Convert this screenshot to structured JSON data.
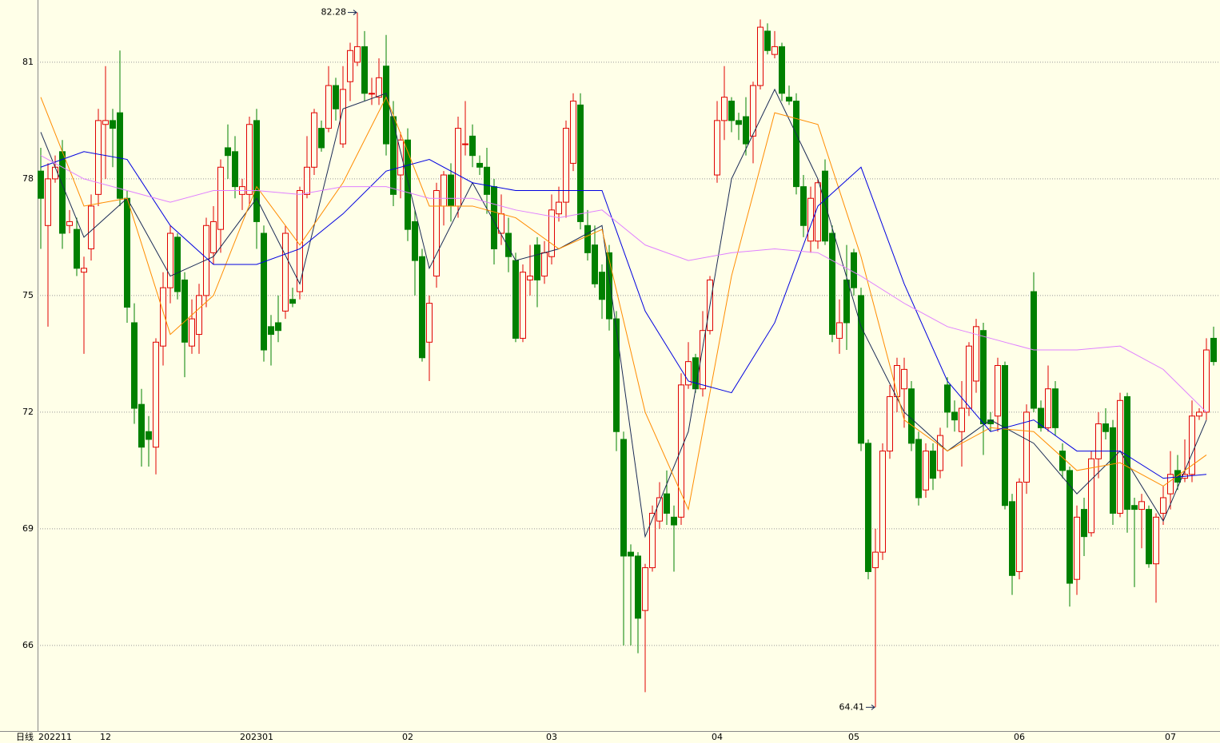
{
  "chart_data": {
    "type": "candlestick",
    "period_label": "日线",
    "categories": [
      "202211",
      null,
      null,
      null,
      null,
      null,
      null,
      null,
      null,
      "12",
      null,
      null,
      null,
      null,
      null,
      null,
      null,
      null,
      null,
      null,
      null,
      null,
      null,
      null,
      null,
      null,
      null,
      null,
      null,
      null,
      "202301",
      null,
      null,
      null,
      null,
      null,
      null,
      null,
      null,
      null,
      null,
      null,
      null,
      null,
      null,
      null,
      null,
      null,
      null,
      null,
      null,
      "02",
      null,
      null,
      null,
      null,
      null,
      null,
      null,
      null,
      null,
      null,
      null,
      null,
      null,
      null,
      null,
      null,
      null,
      null,
      null,
      "03",
      null,
      null,
      null,
      null,
      null,
      null,
      null,
      null,
      null,
      null,
      null,
      null,
      null,
      null,
      null,
      null,
      null,
      null,
      null,
      null,
      null,
      null,
      "04",
      null,
      null,
      null,
      null,
      null,
      null,
      null,
      null,
      null,
      null,
      null,
      null,
      null,
      null,
      null,
      null,
      null,
      null,
      "05",
      null,
      null,
      null,
      null,
      null,
      null,
      null,
      null,
      null,
      null,
      null,
      null,
      null,
      null,
      null,
      null,
      null,
      null,
      null,
      null,
      null,
      null,
      "06",
      null,
      null,
      null,
      null,
      null,
      null,
      null,
      null,
      null,
      null,
      null,
      null,
      null,
      null,
      null,
      null,
      null,
      null,
      null,
      null,
      "07",
      null,
      null,
      null,
      null,
      null,
      null
    ],
    "open": [
      78.2,
      76.8,
      78.0,
      78.7,
      76.8,
      76.7,
      75.6,
      76.2,
      77.6,
      79.4,
      79.5,
      79.7,
      77.5,
      74.3,
      72.2,
      71.5,
      71.1,
      73.7,
      75.2,
      76.5,
      75.4,
      73.7,
      74.0,
      75.0,
      76.1,
      76.7,
      78.8,
      78.7,
      77.6,
      77.6,
      79.5,
      76.6,
      74.2,
      74.3,
      74.6,
      74.9,
      75.1,
      77.6,
      78.3,
      79.3,
      79.3,
      80.4,
      78.9,
      80.5,
      81.0,
      81.4,
      80.2,
      80.1,
      80.9,
      79.6,
      78.1,
      79.0,
      76.9,
      76.0,
      73.8,
      75.5,
      77.3,
      78.1,
      77.3,
      78.9,
      79.1,
      78.4,
      78.3,
      77.8,
      76.6,
      76.6,
      75.9,
      73.9,
      75.4,
      76.3,
      75.5,
      76.0,
      77.1,
      77.4,
      78.4,
      79.9,
      76.8,
      76.3,
      75.6,
      76.1,
      74.4,
      71.3,
      68.4,
      68.3,
      66.9,
      68.0,
      69.2,
      69.9,
      69.3,
      69.3,
      72.7,
      73.4,
      72.6,
      74.1,
      78.1,
      79.5,
      80.0,
      79.5,
      79.6,
      79.1,
      80.4,
      81.8,
      81.2,
      81.4,
      80.1,
      80.0,
      77.8,
      76.4,
      76.4,
      78.2,
      76.6,
      73.9,
      75.4,
      76.1,
      75.0,
      71.2,
      68.0,
      68.4,
      71.0,
      72.4,
      72.6,
      72.6,
      71.3,
      70.0,
      71.0,
      70.5,
      72.7,
      72.0,
      71.5,
      72.1,
      72.8,
      74.1,
      71.8,
      71.9,
      73.2,
      69.7,
      67.9,
      70.2,
      75.1,
      72.1,
      71.6,
      72.6,
      71.0,
      70.5,
      67.7,
      69.5,
      68.9,
      70.8,
      71.7,
      71.6,
      69.4,
      72.4,
      69.6,
      69.5,
      69.5,
      68.1,
      69.4,
      69.9,
      70.5,
      70.3,
      70.4,
      71.9,
      72.0,
      73.9
    ],
    "high": [
      78.8,
      78.4,
      78.6,
      79.0,
      77.2,
      77.0,
      76.0,
      77.6,
      79.8,
      80.9,
      79.8,
      81.3,
      77.7,
      74.8,
      72.6,
      71.9,
      73.9,
      75.6,
      76.8,
      76.6,
      75.6,
      74.9,
      75.3,
      77.0,
      77.3,
      78.5,
      79.4,
      79.1,
      78.0,
      79.6,
      79.8,
      76.8,
      74.5,
      75.0,
      76.8,
      75.2,
      77.8,
      79.1,
      79.8,
      79.5,
      80.9,
      80.6,
      80.9,
      81.5,
      82.28,
      81.8,
      80.6,
      81.1,
      81.7,
      80.0,
      79.2,
      79.3,
      77.2,
      76.2,
      75.0,
      77.9,
      78.2,
      78.4,
      79.6,
      80.0,
      79.4,
      78.6,
      78.8,
      78.0,
      77.6,
      77.0,
      76.1,
      75.8,
      76.3,
      76.5,
      76.4,
      77.6,
      77.8,
      79.5,
      80.2,
      80.2,
      77.2,
      76.8,
      75.8,
      76.3,
      74.6,
      71.5,
      68.6,
      68.4,
      68.1,
      69.6,
      70.2,
      70.5,
      69.6,
      73.0,
      73.8,
      73.5,
      74.6,
      75.5,
      80.0,
      80.9,
      80.1,
      79.7,
      80.1,
      80.5,
      82.1,
      82.0,
      81.8,
      81.5,
      80.4,
      80.2,
      78.1,
      77.8,
      78.0,
      78.5,
      76.8,
      74.9,
      76.3,
      76.2,
      75.2,
      71.3,
      69.0,
      71.2,
      72.7,
      73.4,
      73.4,
      72.8,
      71.5,
      71.2,
      71.2,
      71.6,
      72.9,
      72.3,
      72.8,
      73.8,
      74.4,
      74.3,
      72.0,
      73.4,
      73.3,
      69.9,
      70.3,
      72.2,
      75.6,
      72.3,
      73.2,
      72.8,
      71.2,
      70.6,
      69.6,
      69.8,
      71.0,
      72.0,
      72.1,
      71.8,
      72.5,
      72.5,
      69.8,
      69.9,
      69.6,
      69.4,
      70.1,
      71.0,
      70.9,
      71.3,
      72.3,
      72.1,
      73.9,
      74.2
    ],
    "low": [
      76.2,
      74.2,
      77.9,
      76.2,
      76.6,
      75.5,
      73.5,
      75.9,
      77.3,
      78.0,
      78.3,
      77.3,
      74.3,
      71.7,
      70.6,
      70.6,
      70.4,
      73.2,
      74.8,
      74.9,
      72.9,
      73.5,
      73.5,
      74.7,
      75.8,
      76.1,
      78.0,
      77.5,
      77.2,
      77.3,
      76.2,
      73.3,
      73.2,
      73.8,
      74.4,
      74.7,
      74.9,
      77.5,
      78.1,
      78.7,
      79.2,
      79.5,
      78.8,
      80.0,
      80.9,
      80.0,
      79.9,
      79.9,
      78.6,
      77.3,
      77.5,
      76.4,
      75.0,
      73.3,
      72.8,
      75.2,
      76.8,
      76.9,
      77.0,
      78.6,
      78.3,
      78.1,
      77.1,
      75.8,
      76.3,
      75.6,
      73.8,
      73.8,
      75.0,
      74.7,
      75.3,
      75.8,
      76.9,
      77.0,
      78.2,
      76.7,
      75.9,
      75.2,
      74.4,
      74.1,
      71.0,
      66.0,
      66.0,
      65.8,
      64.8,
      67.9,
      69.0,
      69.1,
      67.9,
      69.1,
      72.6,
      72.5,
      72.4,
      74.0,
      77.9,
      79.0,
      79.2,
      79.0,
      78.6,
      78.4,
      80.3,
      81.2,
      81.1,
      80.0,
      79.9,
      77.6,
      76.5,
      76.1,
      76.2,
      76.3,
      73.8,
      73.5,
      73.6,
      75.0,
      71.0,
      67.7,
      64.41,
      68.2,
      70.8,
      72.0,
      71.6,
      71.0,
      69.6,
      69.8,
      70.0,
      70.3,
      71.6,
      71.5,
      70.6,
      71.9,
      72.5,
      70.9,
      71.5,
      71.5,
      69.5,
      67.3,
      67.7,
      69.9,
      72.0,
      71.5,
      71.5,
      71.4,
      70.3,
      67.0,
      67.3,
      68.3,
      68.8,
      70.3,
      71.3,
      69.1,
      69.3,
      68.9,
      67.5,
      68.5,
      68.0,
      67.1,
      69.1,
      69.5,
      70.0,
      70.2,
      70.2,
      71.8,
      71.8,
      73.2
    ],
    "close": [
      77.5,
      78.0,
      78.3,
      76.6,
      76.9,
      75.7,
      75.7,
      77.3,
      79.5,
      79.5,
      79.3,
      77.5,
      74.7,
      72.1,
      71.1,
      71.3,
      73.8,
      75.2,
      76.6,
      75.1,
      73.8,
      74.4,
      75.0,
      76.8,
      76.9,
      78.3,
      78.6,
      77.8,
      77.8,
      79.4,
      76.9,
      73.6,
      74.0,
      74.1,
      76.6,
      74.8,
      77.7,
      78.3,
      79.7,
      78.8,
      80.4,
      79.8,
      80.3,
      81.3,
      81.4,
      80.2,
      80.2,
      80.6,
      78.9,
      77.6,
      79.0,
      76.7,
      75.9,
      73.4,
      74.8,
      77.7,
      78.1,
      77.3,
      79.3,
      78.9,
      78.6,
      78.3,
      77.6,
      76.2,
      77.1,
      76.0,
      73.9,
      75.6,
      75.5,
      75.4,
      76.1,
      77.2,
      77.4,
      79.3,
      80.0,
      76.9,
      76.1,
      75.3,
      74.9,
      74.4,
      71.5,
      68.3,
      68.3,
      66.7,
      68.0,
      69.4,
      69.8,
      69.4,
      69.1,
      72.7,
      73.3,
      72.6,
      74.1,
      75.4,
      79.5,
      80.1,
      79.5,
      79.4,
      78.9,
      80.4,
      81.9,
      81.3,
      81.4,
      80.2,
      80.0,
      77.8,
      76.8,
      77.5,
      77.9,
      76.4,
      74.0,
      74.3,
      74.3,
      75.2,
      71.2,
      67.9,
      68.4,
      71.0,
      72.4,
      73.2,
      73.1,
      71.2,
      69.8,
      71.0,
      70.3,
      71.4,
      72.0,
      71.8,
      72.1,
      73.7,
      74.2,
      71.7,
      71.7,
      73.2,
      69.6,
      67.8,
      70.2,
      72.0,
      72.1,
      71.6,
      72.6,
      71.6,
      70.5,
      67.6,
      69.3,
      68.8,
      70.8,
      71.7,
      71.5,
      69.4,
      72.3,
      69.5,
      69.5,
      69.7,
      68.1,
      69.3,
      69.8,
      70.4,
      70.2,
      70.4,
      71.9,
      72.0,
      73.6,
      73.3
    ],
    "up_color": "#e00000",
    "down_color": "#008000",
    "ma_x": [
      0,
      6,
      12,
      18,
      24,
      30,
      36,
      42,
      48,
      54,
      60,
      66,
      72,
      78,
      84,
      90,
      96,
      102,
      108,
      114,
      120,
      126,
      132,
      138,
      144,
      150,
      156,
      162
    ],
    "ma": [
      {
        "color": "#1a2a55",
        "values": [
          79.2,
          76.5,
          77.5,
          75.5,
          76.0,
          77.5,
          75.3,
          79.8,
          80.2,
          75.7,
          77.9,
          75.9,
          76.2,
          76.8,
          68.8,
          71.5,
          78.0,
          80.3,
          78.0,
          74.2,
          72.0,
          71.0,
          71.8,
          71.2,
          69.9,
          71.0,
          69.2,
          71.8
        ]
      },
      {
        "color": "#ff8c00",
        "values": [
          80.1,
          77.3,
          77.5,
          74.0,
          75.0,
          77.8,
          76.3,
          77.9,
          80.1,
          77.3,
          77.3,
          77.0,
          76.2,
          76.7,
          72.0,
          69.5,
          75.5,
          79.7,
          79.4,
          76.0,
          71.8,
          71.0,
          71.6,
          71.5,
          70.5,
          70.7,
          70.1,
          70.9
        ]
      },
      {
        "color": "#0000e0",
        "values": [
          78.3,
          78.7,
          78.5,
          76.8,
          75.8,
          75.8,
          76.2,
          77.1,
          78.2,
          78.5,
          77.9,
          77.7,
          77.7,
          77.7,
          74.6,
          72.8,
          72.5,
          74.3,
          77.3,
          78.3,
          75.3,
          72.8,
          71.5,
          71.8,
          71.0,
          71.0,
          70.3,
          70.4
        ]
      },
      {
        "color": "#e080ff",
        "values": [
          78.6,
          78.0,
          77.7,
          77.4,
          77.7,
          77.7,
          77.6,
          77.8,
          77.8,
          77.5,
          77.5,
          77.2,
          77.0,
          77.2,
          76.3,
          75.9,
          76.1,
          76.2,
          76.1,
          75.5,
          74.8,
          74.2,
          73.9,
          73.6,
          73.6,
          73.7,
          73.1,
          72.0
        ]
      }
    ],
    "ylim": [
      63.8,
      82.6
    ],
    "yticks": [
      66,
      69,
      72,
      75,
      78,
      81
    ],
    "grid": true
  }
}
